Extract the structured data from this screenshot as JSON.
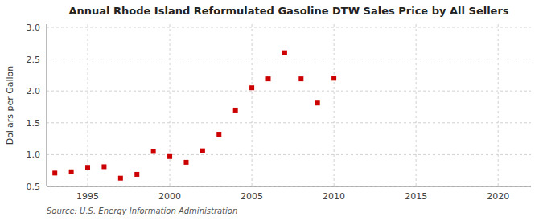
{
  "chart_data": {
    "type": "scatter",
    "title": "Annual Rhode Island Reformulated Gasoline DTW Sales Price by All Sellers",
    "y_label": "Dollars per Gallon",
    "annotations": [
      "Source: U.S. Energy Information Administration"
    ],
    "x": [
      1993,
      1994,
      1995,
      1996,
      1997,
      1998,
      1999,
      2000,
      2001,
      2002,
      2003,
      2004,
      2005,
      2006,
      2007,
      2008,
      2009,
      2010
    ],
    "values": [
      0.71,
      0.73,
      0.8,
      0.81,
      0.63,
      0.69,
      1.05,
      0.97,
      0.88,
      1.06,
      1.32,
      1.7,
      2.05,
      2.19,
      2.6,
      2.19,
      1.81,
      2.2
    ],
    "color": "#cc0000",
    "marker": "square",
    "xlim": [
      1992.5,
      2022
    ],
    "ylim": [
      0.5,
      3.05
    ],
    "xticks": [
      1995,
      2000,
      2005,
      2010,
      2015,
      2020
    ],
    "yticks": [
      0.5,
      {
        "value": 1.0,
        "label": "1.0"
      },
      1.5,
      {
        "value": 2.0,
        "label": "2.0"
      },
      2.5,
      {
        "value": 3.0,
        "label": "3.0"
      }
    ],
    "grid": true
  }
}
